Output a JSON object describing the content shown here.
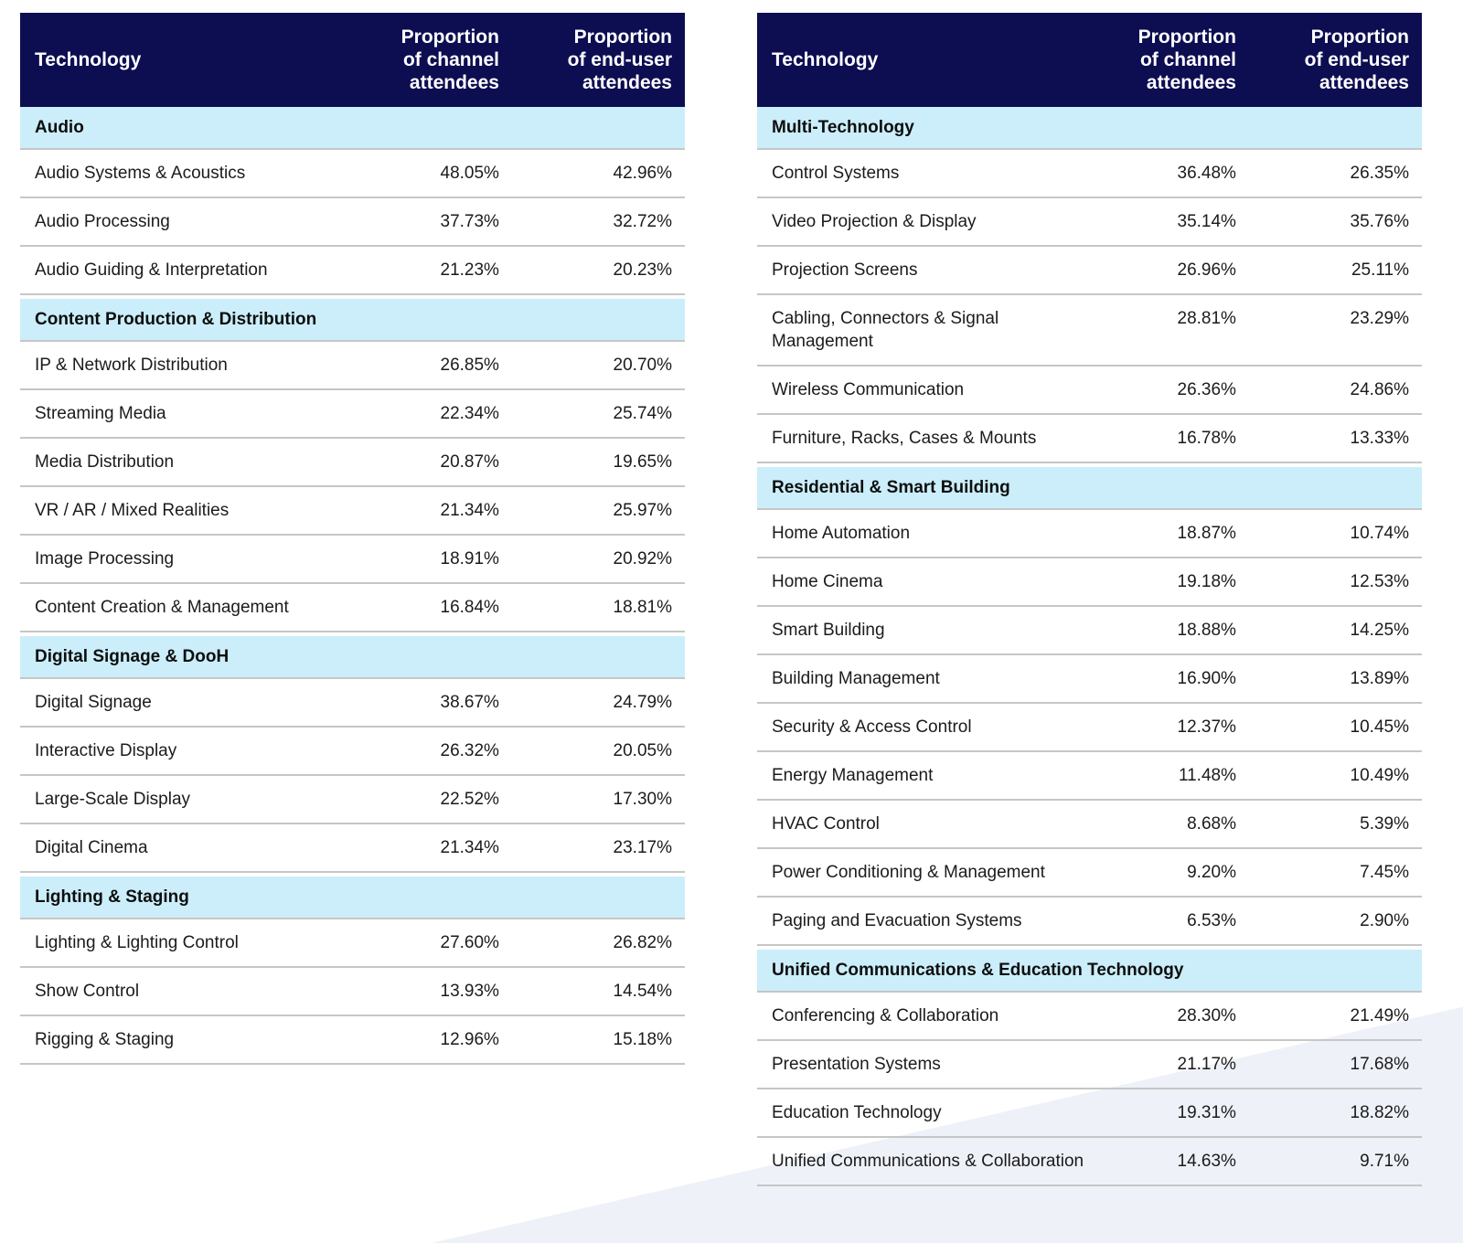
{
  "colors": {
    "header_bg": "#0D0D52",
    "header_text": "#FFFFFF",
    "section_bg": "#CBEEFA",
    "row_border": "#C6C6C6",
    "text_color": "#1B1B1B",
    "accent_triangle": "#EEF1F8"
  },
  "columns": [
    {
      "label": "Technology"
    },
    {
      "label": "Proportion\nof channel\nattendees"
    },
    {
      "label": "Proportion\nof end-user\nattendees"
    }
  ],
  "tables": [
    {
      "sections": [
        {
          "title": "Audio",
          "rows": [
            {
              "name": "Audio Systems & Acoustics",
              "channel": "48.05%",
              "end_user": "42.96%"
            },
            {
              "name": "Audio Processing",
              "channel": "37.73%",
              "end_user": "32.72%"
            },
            {
              "name": "Audio Guiding & Interpretation",
              "channel": "21.23%",
              "end_user": "20.23%"
            }
          ]
        },
        {
          "title": "Content Production & Distribution",
          "rows": [
            {
              "name": "IP & Network Distribution",
              "channel": "26.85%",
              "end_user": "20.70%"
            },
            {
              "name": "Streaming Media",
              "channel": "22.34%",
              "end_user": "25.74%"
            },
            {
              "name": "Media Distribution",
              "channel": "20.87%",
              "end_user": "19.65%"
            },
            {
              "name": "VR / AR / Mixed Realities",
              "channel": "21.34%",
              "end_user": "25.97%"
            },
            {
              "name": "Image Processing",
              "channel": "18.91%",
              "end_user": "20.92%"
            },
            {
              "name": "Content Creation & Management",
              "channel": "16.84%",
              "end_user": "18.81%"
            }
          ]
        },
        {
          "title": "Digital Signage & DooH",
          "rows": [
            {
              "name": "Digital Signage",
              "channel": "38.67%",
              "end_user": "24.79%"
            },
            {
              "name": "Interactive Display",
              "channel": "26.32%",
              "end_user": "20.05%"
            },
            {
              "name": "Large-Scale Display",
              "channel": "22.52%",
              "end_user": "17.30%"
            },
            {
              "name": "Digital Cinema",
              "channel": "21.34%",
              "end_user": "23.17%"
            }
          ]
        },
        {
          "title": "Lighting & Staging",
          "rows": [
            {
              "name": "Lighting & Lighting Control",
              "channel": "27.60%",
              "end_user": "26.82%"
            },
            {
              "name": "Show Control",
              "channel": "13.93%",
              "end_user": "14.54%"
            },
            {
              "name": "Rigging & Staging",
              "channel": "12.96%",
              "end_user": "15.18%"
            }
          ]
        }
      ]
    },
    {
      "sections": [
        {
          "title": "Multi-Technology",
          "rows": [
            {
              "name": "Control Systems",
              "channel": "36.48%",
              "end_user": "26.35%"
            },
            {
              "name": "Video Projection & Display",
              "channel": "35.14%",
              "end_user": "35.76%"
            },
            {
              "name": "Projection Screens",
              "channel": "26.96%",
              "end_user": "25.11%"
            },
            {
              "name": "Cabling, Connectors & Signal Management",
              "channel": "28.81%",
              "end_user": "23.29%"
            },
            {
              "name": "Wireless Communication",
              "channel": "26.36%",
              "end_user": "24.86%"
            },
            {
              "name": "Furniture, Racks, Cases & Mounts",
              "channel": "16.78%",
              "end_user": "13.33%"
            }
          ]
        },
        {
          "title": "Residential & Smart Building",
          "rows": [
            {
              "name": "Home Automation",
              "channel": "18.87%",
              "end_user": "10.74%"
            },
            {
              "name": "Home Cinema",
              "channel": "19.18%",
              "end_user": "12.53%"
            },
            {
              "name": "Smart Building",
              "channel": "18.88%",
              "end_user": "14.25%"
            },
            {
              "name": "Building Management",
              "channel": "16.90%",
              "end_user": "13.89%"
            },
            {
              "name": "Security & Access Control",
              "channel": "12.37%",
              "end_user": "10.45%"
            },
            {
              "name": "Energy Management",
              "channel": "11.48%",
              "end_user": "10.49%"
            },
            {
              "name": "HVAC Control",
              "channel": "8.68%",
              "end_user": "5.39%"
            },
            {
              "name": "Power Conditioning & Management",
              "channel": "9.20%",
              "end_user": "7.45%"
            },
            {
              "name": "Paging and Evacuation Systems",
              "channel": "6.53%",
              "end_user": "2.90%"
            }
          ]
        },
        {
          "title": "Unified Communications & Education Technology",
          "rows": [
            {
              "name": "Conferencing & Collaboration",
              "channel": "28.30%",
              "end_user": "21.49%"
            },
            {
              "name": "Presentation Systems",
              "channel": "21.17%",
              "end_user": "17.68%"
            },
            {
              "name": "Education Technology",
              "channel": "19.31%",
              "end_user": "18.82%"
            },
            {
              "name": "Unified Communications & Collaboration",
              "channel": "14.63%",
              "end_user": "9.71%"
            }
          ]
        }
      ]
    }
  ]
}
